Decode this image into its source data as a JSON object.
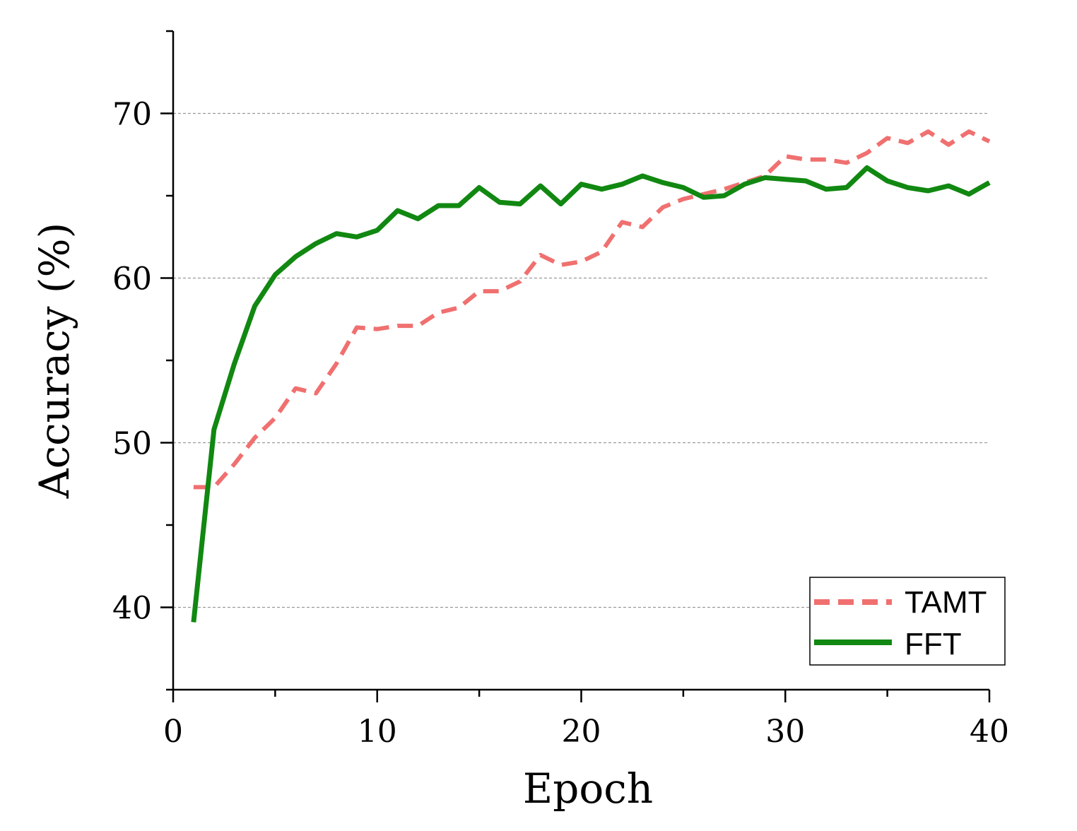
{
  "chart_data": {
    "type": "line",
    "xlabel": "Epoch",
    "ylabel": "Accuracy (%)",
    "xlim": [
      0,
      40
    ],
    "ylim": [
      35,
      75
    ],
    "x_ticks": [
      0,
      10,
      20,
      30,
      40
    ],
    "y_ticks": [
      40,
      50,
      60,
      70
    ],
    "grid": "horizontal dashed at major y ticks",
    "legend_position": "bottom-right",
    "x": [
      1,
      2,
      3,
      4,
      5,
      6,
      7,
      8,
      9,
      10,
      11,
      12,
      13,
      14,
      15,
      16,
      17,
      18,
      19,
      20,
      21,
      22,
      23,
      24,
      25,
      26,
      27,
      28,
      29,
      30,
      31,
      32,
      33,
      34,
      35,
      36,
      37,
      38,
      39,
      40
    ],
    "series": [
      {
        "name": "TAMT",
        "color": "#f07070",
        "style": "dashed",
        "values": [
          47.3,
          47.3,
          48.7,
          50.3,
          51.5,
          53.3,
          53.0,
          54.8,
          57.0,
          56.9,
          57.1,
          57.1,
          57.9,
          58.2,
          59.2,
          59.2,
          59.8,
          61.4,
          60.8,
          61.0,
          61.6,
          63.4,
          63.1,
          64.3,
          64.8,
          65.1,
          65.4,
          65.8,
          66.2,
          67.4,
          67.2,
          67.2,
          67.0,
          67.6,
          68.5,
          68.2,
          68.9,
          68.1,
          68.9,
          68.3
        ]
      },
      {
        "name": "FFT",
        "color": "#118811",
        "style": "solid",
        "values": [
          39.1,
          50.8,
          54.8,
          58.3,
          60.2,
          61.3,
          62.1,
          62.7,
          62.5,
          62.9,
          64.1,
          63.6,
          64.4,
          64.4,
          65.5,
          64.6,
          64.5,
          65.6,
          64.5,
          65.7,
          65.4,
          65.7,
          66.2,
          65.8,
          65.5,
          64.9,
          65.0,
          65.7,
          66.1,
          66.0,
          65.9,
          65.4,
          65.5,
          66.7,
          65.9,
          65.5,
          65.3,
          65.6,
          65.1,
          65.8
        ]
      }
    ]
  }
}
